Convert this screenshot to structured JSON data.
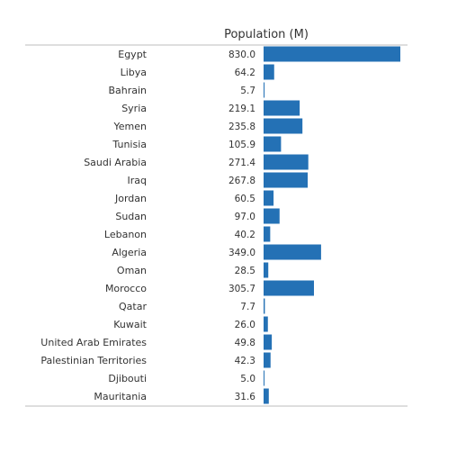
{
  "chart_data": {
    "type": "bar",
    "orientation": "horizontal",
    "title": "Population (M)",
    "categories": [
      "Egypt",
      "Libya",
      "Bahrain",
      "Syria",
      "Yemen",
      "Tunisia",
      "Saudi Arabia",
      "Iraq",
      "Jordan",
      "Sudan",
      "Lebanon",
      "Algeria",
      "Oman",
      "Morocco",
      "Qatar",
      "Kuwait",
      "United Arab Emirates",
      "Palestinian Territories",
      "Djibouti",
      "Mauritania"
    ],
    "values": [
      830.0,
      64.2,
      5.7,
      219.1,
      235.8,
      105.9,
      271.4,
      267.8,
      60.5,
      97.0,
      40.2,
      349.0,
      28.5,
      305.7,
      7.7,
      26.0,
      49.8,
      42.3,
      5.0,
      31.6
    ],
    "value_labels": [
      "830.0",
      "64.2",
      "5.7",
      "219.1",
      "235.8",
      "105.9",
      "271.4",
      "267.8",
      "60.5",
      "97.0",
      "40.2",
      "349.0",
      "28.5",
      "305.7",
      "7.7",
      "26.0",
      "49.8",
      "42.3",
      "5.0",
      "31.6"
    ],
    "xlim": [
      0,
      830.0
    ],
    "grid": false,
    "colors": {
      "bar": "#2471b5"
    }
  }
}
